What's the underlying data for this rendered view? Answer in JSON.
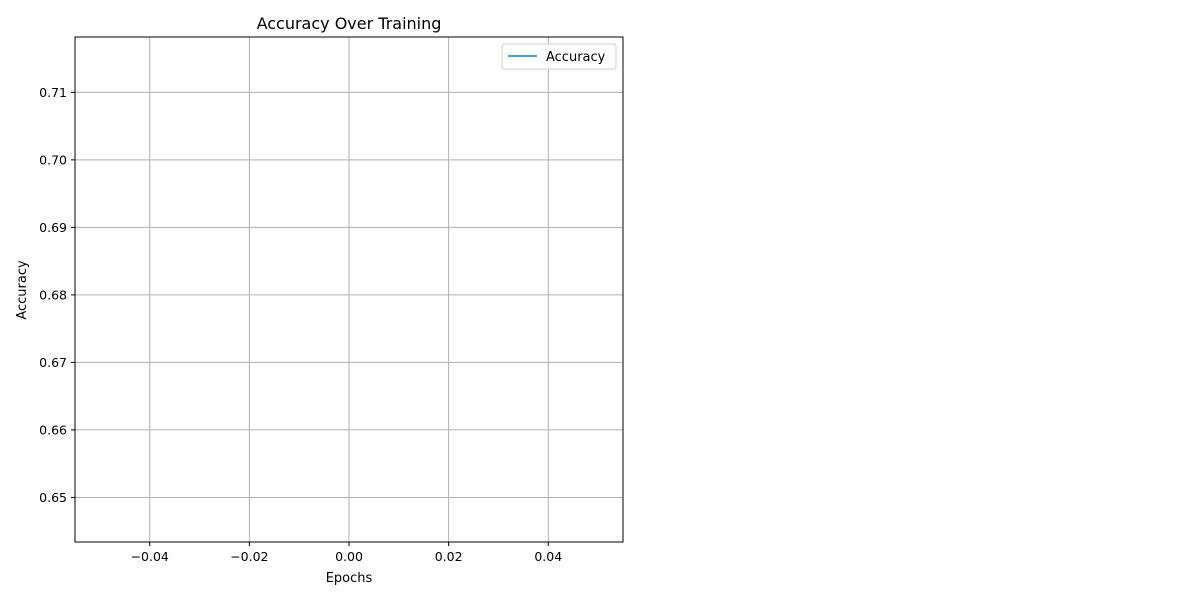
{
  "chart_data": {
    "type": "line",
    "title": "Accuracy Over Training",
    "xlabel": "Epochs",
    "ylabel": "Accuracy",
    "xlim": [
      -0.055,
      0.055
    ],
    "ylim": [
      0.6434,
      0.7182
    ],
    "x_ticks": [
      -0.04,
      -0.02,
      0.0,
      0.02,
      0.04
    ],
    "x_tick_labels": [
      "−0.04",
      "−0.02",
      "0.00",
      "0.02",
      "0.04"
    ],
    "y_ticks": [
      0.65,
      0.66,
      0.67,
      0.68,
      0.69,
      0.7,
      0.71
    ],
    "y_tick_labels": [
      "0.65",
      "0.66",
      "0.67",
      "0.68",
      "0.69",
      "0.70",
      "0.71"
    ],
    "grid": true,
    "legend_position": "top-right",
    "series": [
      {
        "name": "Accuracy",
        "color": "#1f77b4",
        "x": [],
        "y": []
      }
    ]
  }
}
